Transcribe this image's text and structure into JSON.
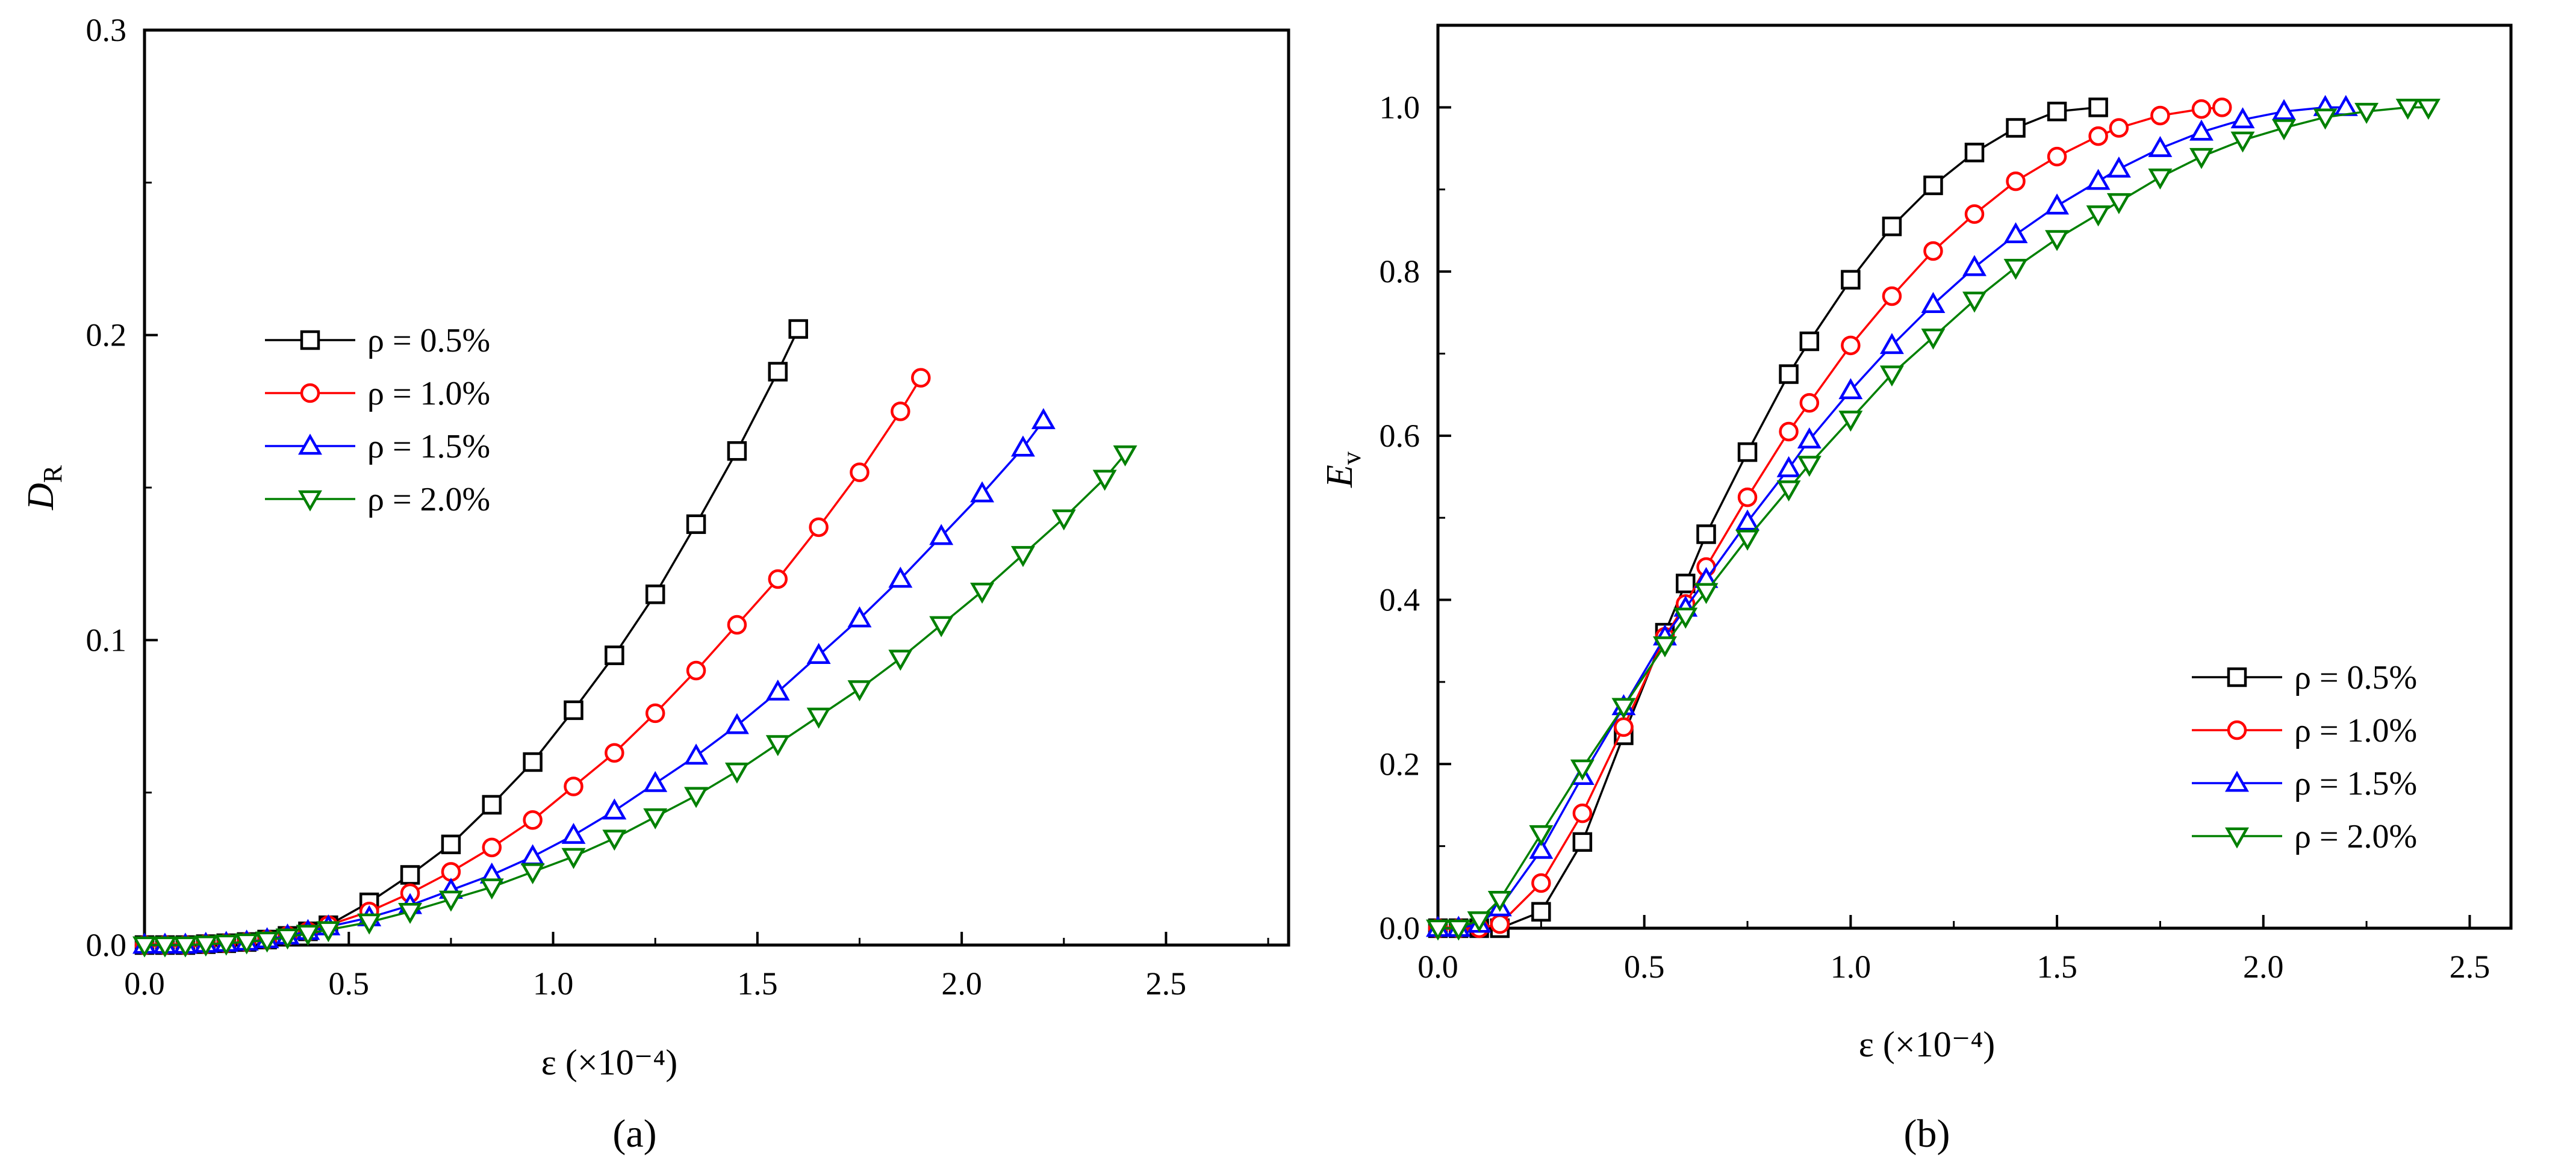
{
  "chart_data": [
    {
      "type": "line",
      "panel_label": "(a)",
      "xlabel": "ε (×10⁻⁴)",
      "ylabel": "D",
      "ylabel_sub": "R",
      "xlim": [
        0,
        2.8
      ],
      "ylim": [
        0,
        0.3
      ],
      "xticks": [
        "0.0",
        "0.5",
        "1.0",
        "1.5",
        "2.0",
        "2.5"
      ],
      "xtick_values": [
        0,
        0.5,
        1.0,
        1.5,
        2.0,
        2.5
      ],
      "yticks": [
        "0.0",
        "0.1",
        "0.2",
        "0.3"
      ],
      "ytick_values": [
        0,
        0.1,
        0.2,
        0.3
      ],
      "legend_position": "upper-left",
      "series": [
        {
          "name": "ρ = 0.5%",
          "color": "#000000",
          "marker": "square",
          "x": [
            0,
            0.05,
            0.1,
            0.15,
            0.2,
            0.25,
            0.3,
            0.35,
            0.4,
            0.45,
            0.55,
            0.65,
            0.75,
            0.85,
            0.95,
            1.05,
            1.15,
            1.25,
            1.35,
            1.45,
            1.55,
            1.6
          ],
          "y": [
            0,
            0,
            0,
            0.0003,
            0.0006,
            0.001,
            0.0018,
            0.003,
            0.0045,
            0.0065,
            0.014,
            0.023,
            0.033,
            0.046,
            0.06,
            0.077,
            0.095,
            0.115,
            0.138,
            0.162,
            0.188,
            0.202
          ]
        },
        {
          "name": "ρ = 1.0%",
          "color": "#ff0000",
          "marker": "circle",
          "x": [
            0,
            0.05,
            0.1,
            0.15,
            0.2,
            0.25,
            0.3,
            0.35,
            0.4,
            0.45,
            0.55,
            0.65,
            0.75,
            0.85,
            0.95,
            1.05,
            1.15,
            1.25,
            1.35,
            1.45,
            1.55,
            1.65,
            1.75,
            1.85,
            1.9
          ],
          "y": [
            0,
            0,
            0,
            0.0003,
            0.0006,
            0.001,
            0.0018,
            0.003,
            0.0045,
            0.0065,
            0.011,
            0.017,
            0.024,
            0.032,
            0.041,
            0.052,
            0.063,
            0.076,
            0.09,
            0.105,
            0.12,
            0.137,
            0.155,
            0.175,
            0.186
          ]
        },
        {
          "name": "ρ = 1.5%",
          "color": "#0000ff",
          "marker": "triangle-up",
          "x": [
            0,
            0.05,
            0.1,
            0.15,
            0.2,
            0.25,
            0.3,
            0.35,
            0.4,
            0.45,
            0.55,
            0.65,
            0.75,
            0.85,
            0.95,
            1.05,
            1.15,
            1.25,
            1.35,
            1.45,
            1.55,
            1.65,
            1.75,
            1.85,
            1.95,
            2.05,
            2.15,
            2.2
          ],
          "y": [
            0,
            0,
            0,
            0.0003,
            0.0006,
            0.001,
            0.0018,
            0.003,
            0.0045,
            0.006,
            0.009,
            0.013,
            0.018,
            0.023,
            0.029,
            0.036,
            0.044,
            0.053,
            0.062,
            0.072,
            0.083,
            0.095,
            0.107,
            0.12,
            0.134,
            0.148,
            0.163,
            0.172
          ]
        },
        {
          "name": "ρ = 2.0%",
          "color": "#008000",
          "marker": "triangle-down",
          "x": [
            0,
            0.05,
            0.1,
            0.15,
            0.2,
            0.25,
            0.3,
            0.35,
            0.4,
            0.45,
            0.55,
            0.65,
            0.75,
            0.85,
            0.95,
            1.05,
            1.15,
            1.25,
            1.35,
            1.45,
            1.55,
            1.65,
            1.75,
            1.85,
            1.95,
            2.05,
            2.15,
            2.25,
            2.35,
            2.4
          ],
          "y": [
            0,
            0,
            0,
            0.0003,
            0.0006,
            0.001,
            0.0016,
            0.0026,
            0.0038,
            0.005,
            0.0075,
            0.011,
            0.015,
            0.019,
            0.024,
            0.029,
            0.035,
            0.042,
            0.049,
            0.057,
            0.066,
            0.075,
            0.084,
            0.094,
            0.105,
            0.116,
            0.128,
            0.14,
            0.153,
            0.161
          ]
        }
      ]
    },
    {
      "type": "line",
      "panel_label": "(b)",
      "xlabel": "ε (×10⁻⁴)",
      "ylabel": "E",
      "ylabel_sub": "v",
      "xlim": [
        0,
        2.6
      ],
      "ylim": [
        0,
        1.1
      ],
      "xticks": [
        "0.0",
        "0.5",
        "1.0",
        "1.5",
        "2.0",
        "2.5"
      ],
      "xtick_values": [
        0,
        0.5,
        1.0,
        1.5,
        2.0,
        2.5
      ],
      "yticks": [
        "0.0",
        "0.2",
        "0.4",
        "0.6",
        "0.8",
        "1.0"
      ],
      "ytick_values": [
        0,
        0.2,
        0.4,
        0.6,
        0.8,
        1.0
      ],
      "legend_position": "lower-right",
      "series": [
        {
          "name": "ρ = 0.5%",
          "color": "#000000",
          "marker": "square",
          "x": [
            0,
            0.05,
            0.1,
            0.15,
            0.25,
            0.35,
            0.45,
            0.55,
            0.6,
            0.65,
            0.75,
            0.85,
            0.9,
            1.0,
            1.1,
            1.2,
            1.3,
            1.4,
            1.5,
            1.6
          ],
          "y": [
            0,
            0,
            0,
            0,
            0.02,
            0.105,
            0.235,
            0.36,
            0.42,
            0.48,
            0.58,
            0.675,
            0.715,
            0.79,
            0.855,
            0.905,
            0.945,
            0.975,
            0.995,
            1.0
          ]
        },
        {
          "name": "ρ = 1.0%",
          "color": "#ff0000",
          "marker": "circle",
          "x": [
            0,
            0.05,
            0.1,
            0.15,
            0.25,
            0.35,
            0.45,
            0.55,
            0.6,
            0.65,
            0.75,
            0.85,
            0.9,
            1.0,
            1.1,
            1.2,
            1.3,
            1.4,
            1.5,
            1.6,
            1.65,
            1.75,
            1.85,
            1.9
          ],
          "y": [
            0,
            0,
            0,
            0.005,
            0.055,
            0.14,
            0.245,
            0.355,
            0.395,
            0.44,
            0.525,
            0.605,
            0.64,
            0.71,
            0.77,
            0.825,
            0.87,
            0.91,
            0.94,
            0.965,
            0.975,
            0.99,
            0.998,
            1.0
          ]
        },
        {
          "name": "ρ = 1.5%",
          "color": "#0000ff",
          "marker": "triangle-up",
          "x": [
            0,
            0.05,
            0.1,
            0.15,
            0.25,
            0.35,
            0.45,
            0.55,
            0.6,
            0.65,
            0.75,
            0.85,
            0.9,
            1.0,
            1.1,
            1.2,
            1.3,
            1.4,
            1.5,
            1.6,
            1.65,
            1.75,
            1.85,
            1.95,
            2.05,
            2.15,
            2.2
          ],
          "y": [
            0,
            0,
            0.005,
            0.025,
            0.095,
            0.185,
            0.27,
            0.355,
            0.39,
            0.425,
            0.495,
            0.56,
            0.595,
            0.655,
            0.71,
            0.76,
            0.805,
            0.845,
            0.88,
            0.91,
            0.925,
            0.95,
            0.97,
            0.985,
            0.995,
            1.0,
            1.0
          ]
        },
        {
          "name": "ρ = 2.0%",
          "color": "#008000",
          "marker": "triangle-down",
          "x": [
            0,
            0.05,
            0.1,
            0.15,
            0.25,
            0.35,
            0.45,
            0.55,
            0.6,
            0.65,
            0.75,
            0.85,
            0.9,
            1.0,
            1.1,
            1.2,
            1.3,
            1.4,
            1.5,
            1.6,
            1.65,
            1.75,
            1.85,
            1.95,
            2.05,
            2.15,
            2.25,
            2.35,
            2.4
          ],
          "y": [
            0,
            0,
            0.01,
            0.035,
            0.115,
            0.195,
            0.27,
            0.345,
            0.38,
            0.41,
            0.475,
            0.535,
            0.565,
            0.62,
            0.675,
            0.72,
            0.765,
            0.805,
            0.84,
            0.87,
            0.885,
            0.915,
            0.94,
            0.96,
            0.975,
            0.988,
            0.995,
            1.0,
            1.0
          ]
        }
      ]
    }
  ]
}
